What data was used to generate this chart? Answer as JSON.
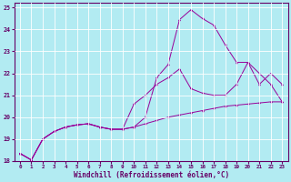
{
  "xlabel": "Windchill (Refroidissement éolien,°C)",
  "background_color": "#b2ebf2",
  "grid_color": "#ffffff",
  "line_color": "#990099",
  "xlim": [
    -0.5,
    23.5
  ],
  "ylim": [
    18,
    25.2
  ],
  "xticks": [
    0,
    1,
    2,
    3,
    4,
    5,
    6,
    7,
    8,
    9,
    10,
    11,
    12,
    13,
    14,
    15,
    16,
    17,
    18,
    19,
    20,
    21,
    22,
    23
  ],
  "yticks": [
    18,
    19,
    20,
    21,
    22,
    23,
    24,
    25
  ],
  "series": [
    {
      "x": [
        0,
        1,
        2,
        3,
        4,
        5,
        6,
        7,
        8,
        9,
        10,
        11,
        12,
        13,
        14,
        15,
        16,
        17,
        18,
        19,
        20,
        21,
        22,
        23
      ],
      "y": [
        18.35,
        18.05,
        19.0,
        19.35,
        19.55,
        19.65,
        19.7,
        19.55,
        19.45,
        19.45,
        19.55,
        20.0,
        21.8,
        22.4,
        24.45,
        24.9,
        24.5,
        24.2,
        23.3,
        22.5,
        22.5,
        22.0,
        21.5,
        20.7
      ]
    },
    {
      "x": [
        0,
        1,
        2,
        3,
        4,
        5,
        6,
        7,
        8,
        9,
        10,
        11,
        12,
        13,
        14,
        15,
        16,
        17,
        18,
        19,
        20,
        21,
        22,
        23
      ],
      "y": [
        18.35,
        18.05,
        19.0,
        19.35,
        19.55,
        19.65,
        19.7,
        19.55,
        19.45,
        19.45,
        20.6,
        21.0,
        21.5,
        21.8,
        22.2,
        21.3,
        21.1,
        21.0,
        21.0,
        21.5,
        22.5,
        21.5,
        22.0,
        21.5
      ]
    },
    {
      "x": [
        0,
        1,
        2,
        3,
        4,
        5,
        6,
        7,
        8,
        9,
        10,
        11,
        12,
        13,
        14,
        15,
        16,
        17,
        18,
        19,
        20,
        21,
        22,
        23
      ],
      "y": [
        18.35,
        18.05,
        19.0,
        19.35,
        19.55,
        19.65,
        19.7,
        19.55,
        19.45,
        19.45,
        19.55,
        19.7,
        19.85,
        20.0,
        20.1,
        20.2,
        20.3,
        20.4,
        20.5,
        20.55,
        20.6,
        20.65,
        20.7,
        20.7
      ]
    }
  ]
}
